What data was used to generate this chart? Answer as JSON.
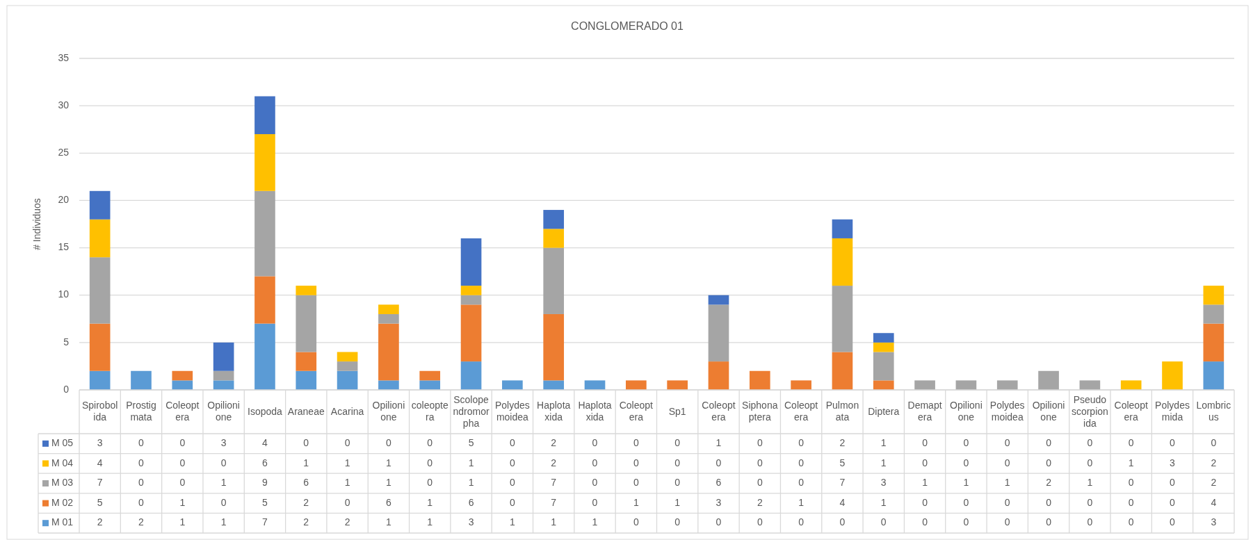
{
  "chart_data": {
    "type": "bar",
    "title": "CONGLOMERADO 01",
    "ylabel": "# Individuos",
    "categories": [
      "Spirobolida",
      "Prostigmata",
      "Coleoptera",
      "Opilionione",
      "Isopoda",
      "Araneae",
      "Acarina",
      "Opilionione",
      "coleoptera",
      "Scolopendromorpha",
      "Polydesmoidea",
      "Haplotaxida",
      "Haplotaxida",
      "Coleoptera",
      "Sp1",
      "Coleoptera",
      "Siphonaptera",
      "Coleoptera",
      "Pulmonata",
      "Diptera",
      "Demaptera",
      "Opilionione",
      "Polydesmoidea",
      "Opilionione",
      "Pseudoscorpionida",
      "Coleoptera",
      "Polydesmida",
      "Lombricus"
    ],
    "series": [
      {
        "name": "M 01",
        "color": "#5b9bd5",
        "values": [
          2,
          2,
          1,
          1,
          7,
          2,
          2,
          1,
          1,
          3,
          1,
          1,
          1,
          0,
          0,
          0,
          0,
          0,
          0,
          0,
          0,
          0,
          0,
          0,
          0,
          0,
          0,
          3
        ]
      },
      {
        "name": "M 02",
        "color": "#ed7d31",
        "values": [
          5,
          0,
          1,
          0,
          5,
          2,
          0,
          6,
          1,
          6,
          0,
          7,
          0,
          1,
          1,
          3,
          2,
          1,
          4,
          1,
          0,
          0,
          0,
          0,
          0,
          0,
          0,
          4
        ]
      },
      {
        "name": "M 03",
        "color": "#a5a5a5",
        "values": [
          7,
          0,
          0,
          1,
          9,
          6,
          1,
          1,
          0,
          1,
          0,
          7,
          0,
          0,
          0,
          6,
          0,
          0,
          7,
          3,
          1,
          1,
          1,
          2,
          1,
          0,
          0,
          2
        ]
      },
      {
        "name": "M 04",
        "color": "#ffc000",
        "values": [
          4,
          0,
          0,
          0,
          6,
          1,
          1,
          1,
          0,
          1,
          0,
          2,
          0,
          0,
          0,
          0,
          0,
          0,
          5,
          1,
          0,
          0,
          0,
          0,
          0,
          1,
          3,
          2
        ]
      },
      {
        "name": "M 05",
        "color": "#4472c4",
        "values": [
          3,
          0,
          0,
          3,
          4,
          0,
          0,
          0,
          0,
          5,
          0,
          2,
          0,
          0,
          0,
          1,
          0,
          0,
          2,
          1,
          0,
          0,
          0,
          0,
          0,
          0,
          0,
          0
        ]
      }
    ],
    "stacked": true,
    "ylim": [
      0,
      35
    ],
    "yticks": [
      0,
      5,
      10,
      15,
      20,
      25,
      30,
      35
    ],
    "grid": "y",
    "legend": "bottom",
    "data_labels": true
  }
}
